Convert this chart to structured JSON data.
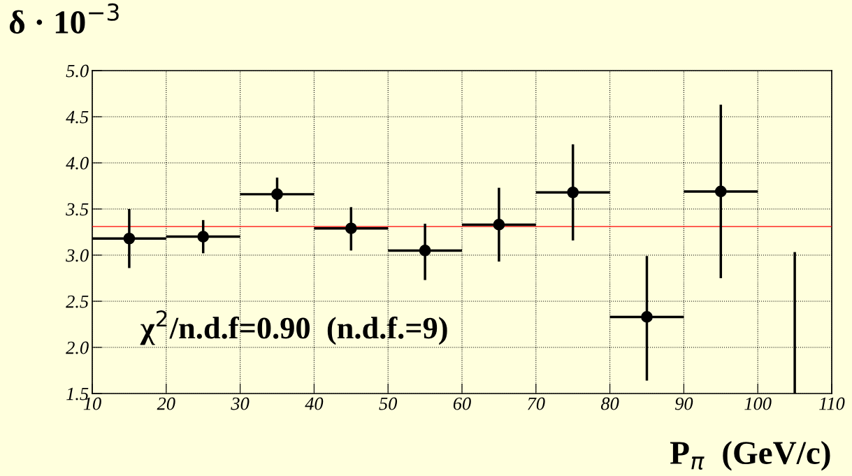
{
  "chart_data": {
    "type": "scatter",
    "xlabel": "P$_{π}$  (GeV/c)",
    "ylabel": "δ · 10$^{−3}$",
    "annotations": [
      "χ$^{2}$/n.d.f=0.90  (n.d.f.=9)"
    ],
    "series": [
      {
        "color": "#000000",
        "marker": "circle",
        "x": [
          15,
          25,
          35,
          45,
          55,
          65,
          75,
          85,
          95
        ],
        "values": [
          3.18,
          3.2,
          3.66,
          3.29,
          3.05,
          3.33,
          3.68,
          2.33,
          3.69
        ],
        "errors": [
          [
            2.86,
            3.5
          ],
          [
            3.02,
            3.38
          ],
          [
            3.47,
            3.84
          ],
          [
            3.05,
            3.52
          ],
          [
            2.73,
            3.34
          ],
          [
            2.93,
            3.73
          ],
          [
            3.16,
            4.2
          ],
          [
            1.64,
            2.99
          ],
          [
            2.75,
            4.63
          ]
        ],
        "xerrors": [
          5,
          5,
          5,
          5,
          5,
          5,
          5,
          5,
          5
        ]
      },
      {
        "type": "line",
        "color": "#000000",
        "x": [
          105,
          105
        ],
        "values": [
          1.5,
          3.02
        ]
      }
    ],
    "ref_lines": [
      {
        "axis": "y",
        "value": 3.31,
        "color": "#ff0000"
      }
    ],
    "xlim": [
      10,
      110
    ],
    "xticks": [
      10,
      20,
      30,
      40,
      50,
      60,
      70,
      80,
      90,
      100,
      110
    ],
    "ylim": [
      1.5,
      5.0
    ],
    "yticks": [
      {
        "value": 1.5,
        "label": "1.5"
      },
      {
        "value": 2,
        "label": "2.0"
      },
      {
        "value": 2.5,
        "label": "2.5"
      },
      {
        "value": 3,
        "label": "3.0"
      },
      {
        "value": 3.5,
        "label": "3.5"
      },
      {
        "value": 4,
        "label": "4.0"
      },
      {
        "value": 4.5,
        "label": "4.5"
      },
      {
        "value": 5,
        "label": "5.0"
      }
    ],
    "grid": true
  }
}
